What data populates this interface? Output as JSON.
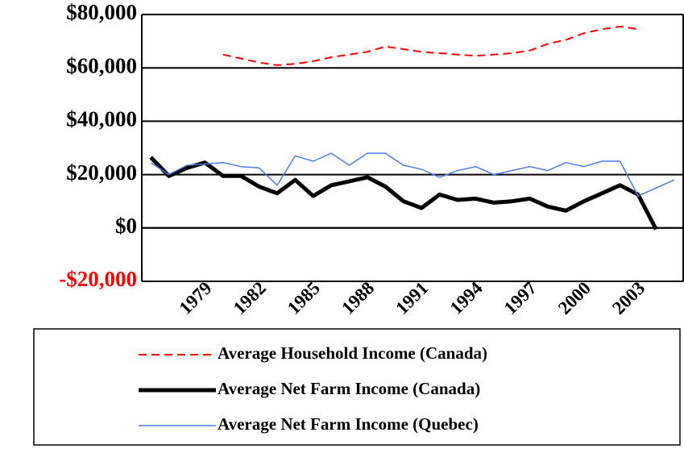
{
  "chart_data": {
    "type": "line",
    "categories": [
      null,
      null,
      null,
      "1979",
      null,
      null,
      "1982",
      null,
      null,
      "1985",
      null,
      null,
      "1988",
      null,
      null,
      "1991",
      null,
      null,
      "1994",
      null,
      null,
      "1997",
      null,
      null,
      "2000",
      null,
      null,
      "2003",
      null,
      null
    ],
    "series": [
      {
        "name": "Average Household Income (Canada)",
        "color": "#ff0000",
        "dash": true,
        "width": 2,
        "values": [
          null,
          null,
          null,
          null,
          65000,
          63500,
          62000,
          61000,
          61500,
          62500,
          64000,
          65000,
          66000,
          68000,
          67000,
          66000,
          65500,
          65000,
          64500,
          65000,
          65500,
          66500,
          69000,
          70500,
          73000,
          74500,
          75500,
          74500,
          null,
          null
        ]
      },
      {
        "name": "Average Net Farm Income (Canada)",
        "color": "#000000",
        "dash": false,
        "width": 5,
        "values": [
          26500,
          19500,
          22500,
          24500,
          19500,
          19500,
          15500,
          13000,
          18000,
          12000,
          16000,
          17500,
          19000,
          15500,
          10000,
          7500,
          12500,
          10500,
          11000,
          9500,
          10000,
          11000,
          8000,
          6500,
          10000,
          13000,
          16000,
          12500,
          -500,
          null
        ]
      },
      {
        "name": "Average Net Farm Income (Quebec)",
        "color": "#4a7fe8",
        "dash": false,
        "width": 1.5,
        "values": [
          24500,
          20000,
          23500,
          24000,
          24500,
          23000,
          22500,
          16000,
          27000,
          25000,
          28000,
          23500,
          28000,
          28000,
          23500,
          22000,
          19000,
          21500,
          23000,
          20000,
          21500,
          23000,
          21500,
          24500,
          23000,
          25000,
          25000,
          12000,
          15000,
          18000
        ]
      }
    ],
    "ylim": [
      -20000,
      80000
    ],
    "yticks": [
      {
        "value": -20000,
        "label": "-$20,000"
      },
      {
        "value": 0,
        "label": "$0"
      },
      {
        "value": 20000,
        "label": "$20,000"
      },
      {
        "value": 40000,
        "label": "$40,000"
      },
      {
        "value": 60000,
        "label": "$60,000"
      },
      {
        "value": 80000,
        "label": "$80,000"
      }
    ],
    "ytick_label_colors": [
      "#ff0000",
      "#000000",
      "#000000",
      "#000000",
      "#000000",
      "#000000"
    ],
    "grid": true,
    "legend": "bottom"
  }
}
